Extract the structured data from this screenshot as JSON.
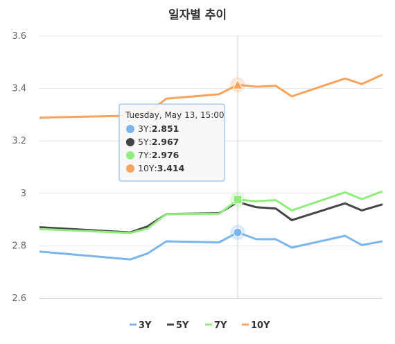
{
  "chart_data": {
    "type": "line",
    "title": "일자별 추이",
    "xlabel": "",
    "ylabel": "",
    "ylim": [
      2.6,
      3.6
    ],
    "yticks": [
      "2.6",
      "2.8",
      "3",
      "3.2",
      "3.4",
      "3.6"
    ],
    "grid": true,
    "legend_position": "bottom",
    "series": [
      {
        "name": "3Y",
        "color": "#7cb5ec",
        "values": [
          2.778,
          2.748,
          2.771,
          2.817,
          2.813,
          2.851,
          2.825,
          2.825,
          2.793,
          2.838,
          2.803,
          2.817
        ]
      },
      {
        "name": "5Y",
        "color": "#434348",
        "values": [
          2.871,
          2.851,
          2.874,
          2.921,
          2.924,
          2.967,
          2.947,
          2.942,
          2.898,
          2.962,
          2.935,
          2.958
        ]
      },
      {
        "name": "7Y",
        "color": "#90ed7d",
        "values": [
          2.864,
          2.849,
          2.866,
          2.921,
          2.922,
          2.976,
          2.97,
          2.974,
          2.935,
          3.004,
          2.978,
          3.008
        ]
      },
      {
        "name": "10Y",
        "color": "#f7a35c",
        "values": [
          3.289,
          3.296,
          3.307,
          3.361,
          3.378,
          3.414,
          3.407,
          3.41,
          3.37,
          3.438,
          3.417,
          3.453
        ]
      }
    ],
    "tooltip": {
      "header": "Tuesday, May 13, 15:00",
      "rows": [
        {
          "name": "3Y",
          "value": "2.851",
          "color": "#7cb5ec"
        },
        {
          "name": "5Y",
          "value": "2.967",
          "color": "#434348"
        },
        {
          "name": "7Y",
          "value": "2.976",
          "color": "#90ed7d"
        },
        {
          "name": "10Y",
          "value": "3.414",
          "color": "#f7a35c"
        }
      ]
    }
  }
}
